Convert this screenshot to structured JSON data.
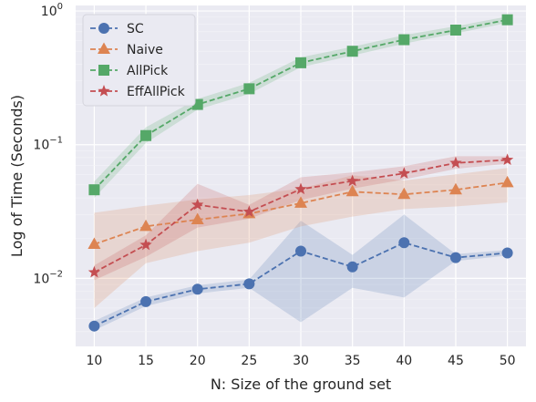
{
  "chart_data": {
    "type": "line",
    "title": "",
    "xlabel": "N: Size of the ground set",
    "ylabel": "Log of Time (Seconds)",
    "yscale": "log",
    "xlim": [
      8.2,
      51.8
    ],
    "ylim": [
      0.0031,
      1.1
    ],
    "x": [
      10,
      15,
      20,
      25,
      30,
      35,
      40,
      45,
      50
    ],
    "x_tick_labels": [
      "10",
      "15",
      "20",
      "25",
      "30",
      "35",
      "40",
      "45",
      "50"
    ],
    "y_ticks": [
      {
        "value": 0.01,
        "base": "10",
        "exp": "−2"
      },
      {
        "value": 0.1,
        "base": "10",
        "exp": "−1"
      },
      {
        "value": 1,
        "base": "10",
        "exp": "0"
      }
    ],
    "grid": true,
    "legend_position": "top-left",
    "series": [
      {
        "name": "SC",
        "color": "#4c72b0",
        "marker": "circle",
        "values": [
          0.0044,
          0.0067,
          0.0083,
          0.0091,
          0.016,
          0.0122,
          0.0185,
          0.0143,
          0.0155
        ],
        "lower": [
          0.0041,
          0.0062,
          0.0077,
          0.0085,
          0.0047,
          0.0085,
          0.0072,
          0.0135,
          0.0148
        ],
        "upper": [
          0.0048,
          0.0072,
          0.0089,
          0.0098,
          0.027,
          0.015,
          0.03,
          0.0152,
          0.0163
        ]
      },
      {
        "name": "Naive",
        "color": "#dd8452",
        "marker": "triangle",
        "values": [
          0.018,
          0.0245,
          0.0275,
          0.0305,
          0.0365,
          0.0445,
          0.0425,
          0.046,
          0.052
        ],
        "lower": [
          0.006,
          0.013,
          0.016,
          0.0185,
          0.0245,
          0.029,
          0.033,
          0.0345,
          0.037
        ],
        "upper": [
          0.031,
          0.035,
          0.039,
          0.042,
          0.047,
          0.059,
          0.054,
          0.06,
          0.067
        ]
      },
      {
        "name": "AllPick",
        "color": "#55a868",
        "marker": "square",
        "values": [
          0.046,
          0.117,
          0.2,
          0.262,
          0.41,
          0.5,
          0.61,
          0.72,
          0.86
        ],
        "lower": [
          0.04,
          0.103,
          0.183,
          0.24,
          0.38,
          0.465,
          0.57,
          0.68,
          0.815
        ],
        "upper": [
          0.053,
          0.135,
          0.22,
          0.29,
          0.45,
          0.54,
          0.66,
          0.77,
          0.91
        ]
      },
      {
        "name": "EffAllPick",
        "color": "#c44e52",
        "marker": "star",
        "values": [
          0.0111,
          0.0178,
          0.0355,
          0.0315,
          0.0465,
          0.0535,
          0.061,
          0.073,
          0.077
        ],
        "lower": [
          0.0097,
          0.0145,
          0.024,
          0.028,
          0.0385,
          0.047,
          0.055,
          0.066,
          0.072
        ],
        "upper": [
          0.0125,
          0.021,
          0.051,
          0.0355,
          0.057,
          0.062,
          0.069,
          0.082,
          0.082
        ]
      }
    ]
  }
}
